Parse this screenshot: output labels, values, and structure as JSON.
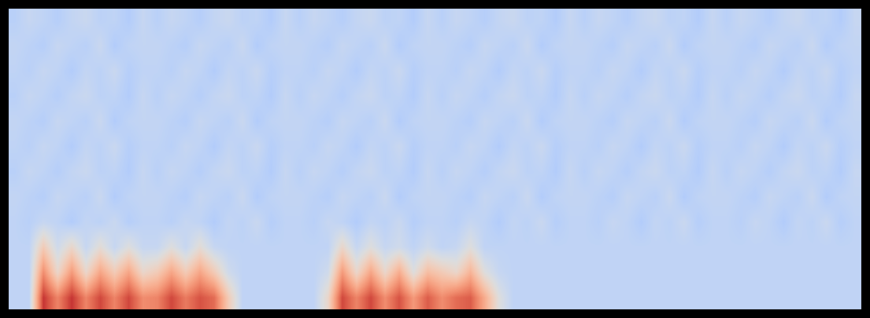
{
  "chart_data": {
    "type": "heatmap",
    "tick_labels": false,
    "color_range": [
      0,
      1
    ],
    "cells": [
      [
        0.4,
        0.4,
        0.95,
        0.8,
        0.95,
        0.8,
        0.92,
        0.8,
        0.92,
        0.78,
        0.8,
        0.92,
        0.82,
        0.9,
        0.85,
        0.6,
        0.4,
        0.4,
        0.4,
        0.4,
        0.4,
        0.4,
        0.55,
        0.92,
        0.8,
        0.92,
        0.78,
        0.9,
        0.75,
        0.88,
        0.78,
        0.85,
        0.88,
        0.7,
        0.5,
        0.4,
        0.4,
        0.4,
        0.4,
        0.4,
        0.4,
        0.4,
        0.4,
        0.4,
        0.4,
        0.4,
        0.4,
        0.4,
        0.4,
        0.4,
        0.4,
        0.4,
        0.4,
        0.4,
        0.4,
        0.4,
        0.4,
        0.4,
        0.4,
        0.4
      ],
      [
        0.4,
        0.4,
        0.78,
        0.55,
        0.75,
        0.55,
        0.72,
        0.6,
        0.72,
        0.55,
        0.6,
        0.72,
        0.6,
        0.72,
        0.6,
        0.45,
        0.4,
        0.4,
        0.4,
        0.4,
        0.4,
        0.4,
        0.45,
        0.75,
        0.55,
        0.72,
        0.55,
        0.7,
        0.5,
        0.65,
        0.6,
        0.55,
        0.68,
        0.5,
        0.42,
        0.4,
        0.4,
        0.4,
        0.4,
        0.4,
        0.4,
        0.4,
        0.4,
        0.4,
        0.4,
        0.4,
        0.4,
        0.4,
        0.4,
        0.4,
        0.4,
        0.4,
        0.4,
        0.4,
        0.4,
        0.4,
        0.4,
        0.4,
        0.4,
        0.4
      ],
      [
        0.4,
        0.4,
        0.6,
        0.45,
        0.55,
        0.42,
        0.52,
        0.42,
        0.5,
        0.42,
        0.42,
        0.5,
        0.42,
        0.52,
        0.42,
        0.4,
        0.4,
        0.4,
        0.4,
        0.4,
        0.4,
        0.4,
        0.4,
        0.55,
        0.42,
        0.5,
        0.42,
        0.45,
        0.4,
        0.45,
        0.4,
        0.42,
        0.5,
        0.4,
        0.4,
        0.4,
        0.4,
        0.4,
        0.4,
        0.4,
        0.4,
        0.4,
        0.4,
        0.4,
        0.4,
        0.4,
        0.4,
        0.4,
        0.4,
        0.4,
        0.4,
        0.4,
        0.4,
        0.4,
        0.4,
        0.4,
        0.4,
        0.4,
        0.4,
        0.4
      ],
      [
        0.4,
        0.38,
        0.42,
        0.4,
        0.36,
        0.41,
        0.39,
        0.43,
        0.37,
        0.4,
        0.4,
        0.38,
        0.42,
        0.4,
        0.36,
        0.41,
        0.39,
        0.43,
        0.37,
        0.4,
        0.4,
        0.38,
        0.42,
        0.4,
        0.36,
        0.41,
        0.39,
        0.43,
        0.37,
        0.4,
        0.4,
        0.38,
        0.42,
        0.4,
        0.36,
        0.41,
        0.39,
        0.43,
        0.37,
        0.4,
        0.4,
        0.38,
        0.42,
        0.4,
        0.36,
        0.41,
        0.39,
        0.43,
        0.37,
        0.4,
        0.4,
        0.38,
        0.42,
        0.4,
        0.36,
        0.41,
        0.39,
        0.43,
        0.37,
        0.4
      ],
      [
        0.41,
        0.39,
        0.37,
        0.42,
        0.4,
        0.38,
        0.43,
        0.36,
        0.4,
        0.41,
        0.41,
        0.39,
        0.37,
        0.42,
        0.4,
        0.38,
        0.43,
        0.36,
        0.4,
        0.41,
        0.41,
        0.39,
        0.37,
        0.42,
        0.4,
        0.38,
        0.43,
        0.36,
        0.4,
        0.41,
        0.41,
        0.39,
        0.37,
        0.42,
        0.4,
        0.38,
        0.43,
        0.36,
        0.4,
        0.41,
        0.41,
        0.39,
        0.37,
        0.42,
        0.4,
        0.38,
        0.43,
        0.36,
        0.4,
        0.41,
        0.41,
        0.39,
        0.37,
        0.42,
        0.4,
        0.38,
        0.43,
        0.36,
        0.4,
        0.41
      ],
      [
        0.38,
        0.42,
        0.4,
        0.37,
        0.41,
        0.43,
        0.39,
        0.4,
        0.36,
        0.42,
        0.38,
        0.42,
        0.4,
        0.37,
        0.41,
        0.43,
        0.39,
        0.4,
        0.36,
        0.42,
        0.38,
        0.42,
        0.4,
        0.37,
        0.41,
        0.43,
        0.39,
        0.4,
        0.36,
        0.42,
        0.38,
        0.42,
        0.4,
        0.37,
        0.41,
        0.43,
        0.39,
        0.4,
        0.36,
        0.42,
        0.38,
        0.42,
        0.4,
        0.37,
        0.41,
        0.43,
        0.39,
        0.4,
        0.36,
        0.42,
        0.38,
        0.42,
        0.4,
        0.37,
        0.41,
        0.43,
        0.39,
        0.4,
        0.36,
        0.42
      ],
      [
        0.4,
        0.38,
        0.42,
        0.4,
        0.36,
        0.41,
        0.39,
        0.43,
        0.37,
        0.4,
        0.4,
        0.38,
        0.42,
        0.4,
        0.36,
        0.41,
        0.39,
        0.43,
        0.37,
        0.4,
        0.4,
        0.38,
        0.42,
        0.4,
        0.36,
        0.41,
        0.39,
        0.43,
        0.37,
        0.4,
        0.4,
        0.38,
        0.42,
        0.4,
        0.36,
        0.41,
        0.39,
        0.43,
        0.37,
        0.4,
        0.4,
        0.38,
        0.42,
        0.4,
        0.36,
        0.41,
        0.39,
        0.43,
        0.37,
        0.4,
        0.4,
        0.38,
        0.42,
        0.4,
        0.36,
        0.41,
        0.39,
        0.43,
        0.37,
        0.4
      ],
      [
        0.41,
        0.39,
        0.37,
        0.42,
        0.4,
        0.38,
        0.43,
        0.36,
        0.4,
        0.41,
        0.41,
        0.39,
        0.37,
        0.42,
        0.4,
        0.38,
        0.43,
        0.36,
        0.4,
        0.41,
        0.41,
        0.39,
        0.37,
        0.42,
        0.4,
        0.38,
        0.43,
        0.36,
        0.4,
        0.41,
        0.41,
        0.39,
        0.37,
        0.42,
        0.4,
        0.38,
        0.43,
        0.36,
        0.4,
        0.41,
        0.41,
        0.39,
        0.37,
        0.42,
        0.4,
        0.38,
        0.43,
        0.36,
        0.4,
        0.41,
        0.41,
        0.39,
        0.37,
        0.42,
        0.4,
        0.38,
        0.43,
        0.36,
        0.4,
        0.41
      ],
      [
        0.38,
        0.42,
        0.4,
        0.37,
        0.41,
        0.43,
        0.39,
        0.4,
        0.36,
        0.42,
        0.38,
        0.42,
        0.4,
        0.37,
        0.41,
        0.43,
        0.39,
        0.4,
        0.36,
        0.42,
        0.38,
        0.42,
        0.4,
        0.37,
        0.41,
        0.43,
        0.39,
        0.4,
        0.36,
        0.42,
        0.38,
        0.42,
        0.4,
        0.37,
        0.41,
        0.43,
        0.39,
        0.4,
        0.36,
        0.42,
        0.38,
        0.42,
        0.4,
        0.37,
        0.41,
        0.43,
        0.39,
        0.4,
        0.36,
        0.42,
        0.38,
        0.42,
        0.4,
        0.37,
        0.41,
        0.43,
        0.39,
        0.4,
        0.36,
        0.42
      ],
      [
        0.4,
        0.38,
        0.42,
        0.4,
        0.36,
        0.41,
        0.39,
        0.43,
        0.37,
        0.4,
        0.4,
        0.38,
        0.42,
        0.4,
        0.36,
        0.41,
        0.39,
        0.43,
        0.37,
        0.4,
        0.4,
        0.38,
        0.42,
        0.4,
        0.36,
        0.41,
        0.39,
        0.43,
        0.37,
        0.4,
        0.4,
        0.38,
        0.42,
        0.4,
        0.36,
        0.41,
        0.39,
        0.43,
        0.37,
        0.4,
        0.4,
        0.38,
        0.42,
        0.4,
        0.36,
        0.41,
        0.39,
        0.43,
        0.37,
        0.4,
        0.4,
        0.38,
        0.42,
        0.4,
        0.36,
        0.41,
        0.39,
        0.43,
        0.37,
        0.4
      ],
      [
        0.41,
        0.39,
        0.37,
        0.42,
        0.4,
        0.38,
        0.43,
        0.36,
        0.4,
        0.41,
        0.41,
        0.39,
        0.37,
        0.42,
        0.4,
        0.38,
        0.43,
        0.36,
        0.4,
        0.41,
        0.41,
        0.39,
        0.37,
        0.42,
        0.4,
        0.38,
        0.43,
        0.36,
        0.4,
        0.41,
        0.41,
        0.39,
        0.37,
        0.42,
        0.4,
        0.38,
        0.43,
        0.36,
        0.4,
        0.41,
        0.41,
        0.39,
        0.37,
        0.42,
        0.4,
        0.38,
        0.43,
        0.36,
        0.4,
        0.41,
        0.41,
        0.39,
        0.37,
        0.42,
        0.4,
        0.38,
        0.43,
        0.36,
        0.4,
        0.41
      ],
      [
        0.38,
        0.42,
        0.4,
        0.37,
        0.41,
        0.43,
        0.39,
        0.4,
        0.36,
        0.42,
        0.38,
        0.42,
        0.4,
        0.37,
        0.41,
        0.43,
        0.39,
        0.4,
        0.36,
        0.42,
        0.38,
        0.42,
        0.4,
        0.37,
        0.41,
        0.43,
        0.39,
        0.4,
        0.36,
        0.42,
        0.38,
        0.42,
        0.4,
        0.37,
        0.41,
        0.43,
        0.39,
        0.4,
        0.36,
        0.42,
        0.38,
        0.42,
        0.4,
        0.37,
        0.41,
        0.43,
        0.39,
        0.4,
        0.36,
        0.42,
        0.38,
        0.42,
        0.4,
        0.37,
        0.41,
        0.43,
        0.39,
        0.4,
        0.36,
        0.42
      ]
    ]
  }
}
